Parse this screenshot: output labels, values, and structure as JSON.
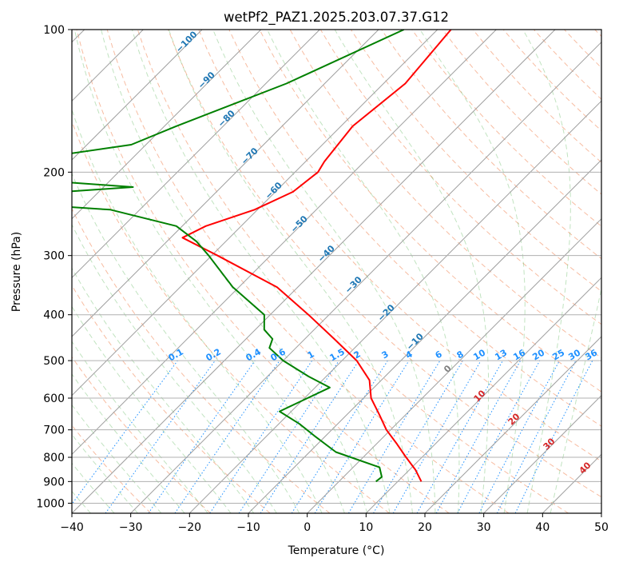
{
  "chart_data": {
    "type": "line",
    "title": "wetPf2_PAZ1.2025.203.07.37.G12",
    "xlabel": "Temperature (°C)",
    "ylabel": "Pressure (hPa)",
    "xlim": [
      -40,
      50
    ],
    "ylim": [
      1050,
      100
    ],
    "y_scale": "log",
    "grid": true,
    "x_ticks": [
      "−40",
      "−30",
      "−20",
      "−10",
      "0",
      "10",
      "20",
      "30",
      "40",
      "50"
    ],
    "y_ticks": [
      "100",
      "200",
      "300",
      "400",
      "500",
      "600",
      "700",
      "800",
      "900",
      "1000"
    ],
    "series": [
      {
        "role": "temperature",
        "color": "#ff0000",
        "points": [
          [
            100,
            -57.7
          ],
          [
            130,
            -56.3
          ],
          [
            160,
            -58.0
          ],
          [
            190,
            -56.8
          ],
          [
            200,
            -56.1
          ],
          [
            220,
            -57.0
          ],
          [
            240,
            -60.5
          ],
          [
            260,
            -66.0
          ],
          [
            275,
            -68.0
          ],
          [
            300,
            -59.0
          ],
          [
            350,
            -43.5
          ],
          [
            400,
            -33.5
          ],
          [
            450,
            -25.0
          ],
          [
            500,
            -17.5
          ],
          [
            550,
            -12.0
          ],
          [
            600,
            -8.7
          ],
          [
            650,
            -4.5
          ],
          [
            700,
            -0.7
          ],
          [
            750,
            3.5
          ],
          [
            800,
            7.3
          ],
          [
            850,
            11.0
          ],
          [
            900,
            14.0
          ]
        ]
      },
      {
        "role": "dewpoint",
        "color": "#008000",
        "points": [
          [
            100,
            -65.7
          ],
          [
            130,
            -76.5
          ],
          [
            160,
            -88.0
          ],
          [
            175,
            -92.5
          ],
          [
            185,
            -104.0
          ],
          [
            205,
            -110.0
          ],
          [
            215,
            -85.0
          ],
          [
            222,
            -100.0
          ],
          [
            230,
            -109.5
          ],
          [
            240,
            -85.0
          ],
          [
            260,
            -71.0
          ],
          [
            280,
            -65.0
          ],
          [
            300,
            -60.5
          ],
          [
            350,
            -51.0
          ],
          [
            400,
            -41.0
          ],
          [
            430,
            -38.5
          ],
          [
            450,
            -35.5
          ],
          [
            470,
            -34.5
          ],
          [
            500,
            -30.0
          ],
          [
            540,
            -23.0
          ],
          [
            570,
            -17.5
          ],
          [
            600,
            -19.5
          ],
          [
            640,
            -22.0
          ],
          [
            680,
            -16.5
          ],
          [
            720,
            -12.0
          ],
          [
            780,
            -5.5
          ],
          [
            840,
            4.5
          ],
          [
            880,
            6.5
          ],
          [
            900,
            6.3
          ]
        ]
      }
    ],
    "dry_adiabat_labels": [
      "−100",
      "−90",
      "−80",
      "−70",
      "−60",
      "−50",
      "−40",
      "−30",
      "−20",
      "−10"
    ],
    "mixing_ratio_labels": [
      "0.1",
      "0.2",
      "0.4",
      "0.6",
      "1",
      "1.5",
      "2",
      "3",
      "4",
      "6",
      "8",
      "10",
      "13",
      "16",
      "20",
      "25",
      "30",
      "36"
    ],
    "moist_adiabat_labels": [
      "0",
      "10",
      "20",
      "30",
      "40"
    ],
    "colors": {
      "dry_adiabat_label": "#1f77b4",
      "mixing_ratio": "#1e90ff",
      "moist_adiabat_label": "#d62728",
      "zero_label": "#808080"
    }
  }
}
